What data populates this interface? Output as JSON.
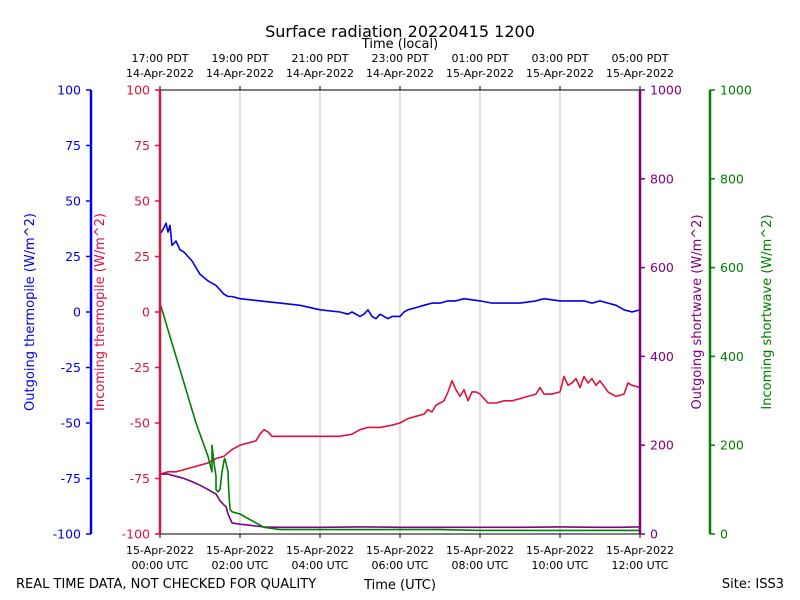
{
  "chart_data": {
    "type": "line",
    "title": "Surface radiation 20220415 1200",
    "xlabel_bottom": "Time (UTC)",
    "xlabel_top": "Time (local)",
    "footer_left": "REAL TIME DATA, NOT CHECKED FOR QUALITY",
    "footer_right": "Site: ISS3",
    "x_range_hours": [
      0,
      12
    ],
    "bottom_ticks": [
      {
        "h": 0,
        "line1": "15-Apr-2022",
        "line2": "00:00 UTC"
      },
      {
        "h": 2,
        "line1": "15-Apr-2022",
        "line2": "02:00 UTC"
      },
      {
        "h": 4,
        "line1": "15-Apr-2022",
        "line2": "04:00 UTC"
      },
      {
        "h": 6,
        "line1": "15-Apr-2022",
        "line2": "06:00 UTC"
      },
      {
        "h": 8,
        "line1": "15-Apr-2022",
        "line2": "08:00 UTC"
      },
      {
        "h": 10,
        "line1": "15-Apr-2022",
        "line2": "10:00 UTC"
      },
      {
        "h": 12,
        "line1": "15-Apr-2022",
        "line2": "12:00 UTC"
      }
    ],
    "top_ticks": [
      {
        "h": 0,
        "line1": "17:00 PDT",
        "line2": "14-Apr-2022"
      },
      {
        "h": 2,
        "line1": "19:00 PDT",
        "line2": "14-Apr-2022"
      },
      {
        "h": 4,
        "line1": "21:00 PDT",
        "line2": "14-Apr-2022"
      },
      {
        "h": 6,
        "line1": "23:00 PDT",
        "line2": "14-Apr-2022"
      },
      {
        "h": 8,
        "line1": "01:00 PDT",
        "line2": "15-Apr-2022"
      },
      {
        "h": 10,
        "line1": "03:00 PDT",
        "line2": "15-Apr-2022"
      },
      {
        "h": 12,
        "line1": "05:00 PDT",
        "line2": "15-Apr-2022"
      }
    ],
    "axes": {
      "outgoing_thermopile": {
        "label": "Outgoing thermopile (W/m^2)",
        "color": "#0000ee",
        "ylim": [
          -100,
          100
        ],
        "ticks": [
          "-100",
          "-75",
          "-50",
          "-25",
          "0",
          "25",
          "50",
          "75",
          "100"
        ]
      },
      "incoming_thermopile": {
        "label": "Incoming thermopile (W/m^2)",
        "color": "#dc143c",
        "ylim": [
          -100,
          100
        ],
        "ticks": [
          "-100",
          "-75",
          "-50",
          "-25",
          "0",
          "25",
          "50",
          "75",
          "100"
        ]
      },
      "outgoing_shortwave": {
        "label": "Outgoing shortwave (W/m^2)",
        "color": "#800080",
        "ylim": [
          0,
          1000
        ],
        "ticks": [
          "0",
          "200",
          "400",
          "600",
          "800",
          "1000"
        ]
      },
      "incoming_shortwave": {
        "label": "Incoming shortwave (W/m^2)",
        "color": "#008000",
        "ylim": [
          0,
          1000
        ],
        "ticks": [
          "0",
          "200",
          "400",
          "600",
          "800",
          "1000"
        ]
      }
    },
    "series": [
      {
        "name": "Outgoing thermopile",
        "axis": "outgoing_thermopile",
        "color": "#0000ee",
        "x": [
          0,
          0.1,
          0.15,
          0.2,
          0.25,
          0.3,
          0.4,
          0.5,
          0.6,
          0.7,
          0.8,
          0.9,
          1.0,
          1.2,
          1.4,
          1.5,
          1.6,
          1.7,
          1.8,
          2.0,
          2.5,
          3.0,
          3.5,
          4.0,
          4.5,
          4.7,
          4.8,
          5.0,
          5.1,
          5.2,
          5.3,
          5.4,
          5.5,
          5.6,
          5.7,
          5.8,
          6.0,
          6.1,
          6.2,
          6.4,
          6.6,
          6.8,
          7.0,
          7.2,
          7.4,
          7.6,
          8.0,
          8.3,
          8.6,
          9.0,
          9.4,
          9.6,
          10.0,
          10.2,
          10.4,
          10.6,
          10.8,
          11.0,
          11.2,
          11.4,
          11.6,
          11.8,
          12.0
        ],
        "y": [
          35,
          38,
          40,
          36,
          39,
          30,
          32,
          28,
          27,
          25,
          23,
          20,
          17,
          14,
          12,
          10,
          8,
          7,
          7,
          6,
          5,
          4,
          3,
          1,
          0,
          -1,
          0,
          -2,
          -1,
          1,
          -2,
          -3,
          -1,
          -2,
          -3,
          -2,
          -2,
          0,
          1,
          2,
          3,
          4,
          4,
          5,
          5,
          6,
          5,
          4,
          4,
          4,
          5,
          6,
          5,
          5,
          5,
          5,
          4,
          5,
          4,
          3,
          1,
          0,
          1
        ]
      },
      {
        "name": "Incoming thermopile",
        "axis": "incoming_thermopile",
        "color": "#dc143c",
        "x": [
          0,
          0.2,
          0.4,
          0.6,
          0.8,
          1.0,
          1.2,
          1.4,
          1.6,
          1.8,
          2.0,
          2.2,
          2.4,
          2.5,
          2.6,
          2.7,
          2.8,
          3.0,
          3.5,
          4.0,
          4.5,
          4.8,
          5.0,
          5.2,
          5.5,
          5.8,
          6.0,
          6.2,
          6.4,
          6.6,
          6.7,
          6.8,
          6.9,
          7.0,
          7.1,
          7.2,
          7.3,
          7.4,
          7.5,
          7.6,
          7.7,
          7.8,
          7.9,
          8.0,
          8.2,
          8.4,
          8.6,
          8.8,
          9.0,
          9.2,
          9.4,
          9.5,
          9.6,
          9.8,
          10.0,
          10.1,
          10.2,
          10.3,
          10.4,
          10.5,
          10.6,
          10.7,
          10.8,
          10.9,
          11.0,
          11.2,
          11.4,
          11.6,
          11.7,
          11.8,
          12.0
        ],
        "y": [
          -73,
          -72,
          -72,
          -71,
          -70,
          -69,
          -68,
          -66,
          -65,
          -62,
          -60,
          -59,
          -58,
          -55,
          -53,
          -54,
          -56,
          -56,
          -56,
          -56,
          -56,
          -55,
          -53,
          -52,
          -52,
          -51,
          -50,
          -48,
          -47,
          -46,
          -44,
          -45,
          -42,
          -41,
          -40,
          -36,
          -31,
          -35,
          -38,
          -35,
          -40,
          -36,
          -36,
          -37,
          -41,
          -41,
          -40,
          -40,
          -39,
          -38,
          -37,
          -34,
          -37,
          -37,
          -36,
          -29,
          -33,
          -32,
          -30,
          -34,
          -29,
          -32,
          -30,
          -33,
          -31,
          -36,
          -38,
          -37,
          -32,
          -33,
          -34
        ]
      },
      {
        "name": "Outgoing shortwave",
        "axis": "outgoing_shortwave",
        "color": "#800080",
        "x": [
          0,
          0.2,
          0.4,
          0.6,
          0.8,
          1.0,
          1.2,
          1.4,
          1.5,
          1.6,
          1.65,
          1.7,
          1.8,
          2.0,
          2.2,
          2.4,
          2.6,
          3.0,
          4.0,
          5.0,
          6.0,
          7.0,
          8.0,
          9.0,
          10.0,
          11.0,
          11.5,
          12.0
        ],
        "y": [
          135,
          135,
          130,
          125,
          118,
          110,
          100,
          90,
          75,
          65,
          62,
          45,
          25,
          22,
          20,
          18,
          16,
          15,
          15,
          16,
          15,
          15,
          15,
          15,
          16,
          15,
          15,
          16
        ]
      },
      {
        "name": "Incoming shortwave",
        "axis": "incoming_shortwave",
        "color": "#008000",
        "x": [
          0,
          0.1,
          0.2,
          0.3,
          0.4,
          0.5,
          0.6,
          0.7,
          0.8,
          0.9,
          1.0,
          1.1,
          1.2,
          1.3,
          1.3,
          1.35,
          1.4,
          1.4,
          1.45,
          1.5,
          1.55,
          1.6,
          1.62,
          1.65,
          1.7,
          1.72,
          1.75,
          1.8,
          2.0,
          2.2,
          2.4,
          2.6,
          3.0,
          4.0,
          5.0,
          6.0,
          7.0,
          8.0,
          9.0,
          10.0,
          11.0,
          12.0
        ],
        "y": [
          520,
          490,
          460,
          430,
          400,
          370,
          340,
          310,
          280,
          250,
          225,
          200,
          175,
          140,
          200,
          160,
          130,
          100,
          95,
          100,
          140,
          165,
          170,
          160,
          140,
          95,
          55,
          50,
          45,
          35,
          25,
          15,
          10,
          10,
          10,
          10,
          10,
          8,
          8,
          8,
          8,
          8
        ]
      }
    ]
  }
}
